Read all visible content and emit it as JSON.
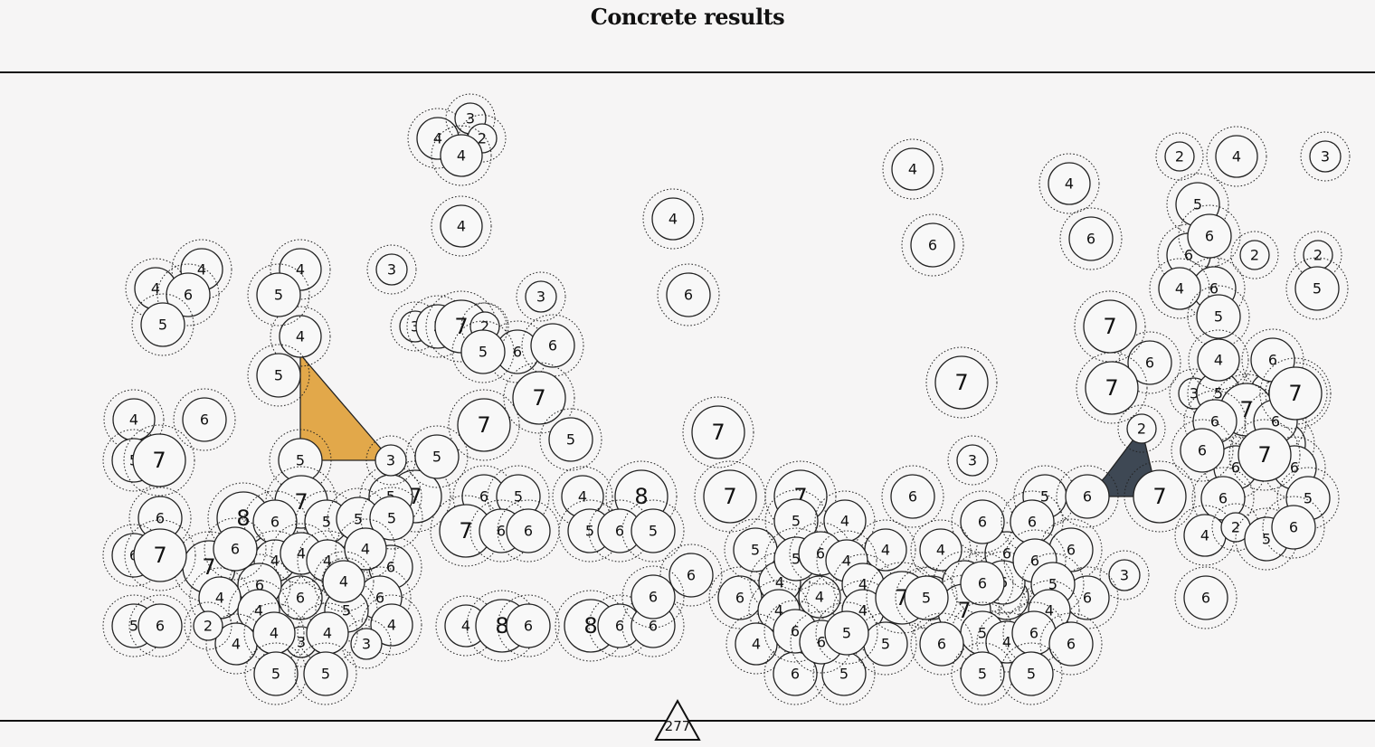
{
  "header": {
    "title": "Concrete results"
  },
  "footer": {
    "count": "277"
  },
  "colors": {
    "background": "#f6f5f5",
    "highlight_orange": "#e2a84a",
    "highlight_dark": "#3e4854",
    "stroke": "#222222"
  },
  "highlights": [
    {
      "name": "orange-triangle",
      "color": "#e2a84a",
      "corners": [
        4,
        5,
        3
      ]
    },
    {
      "name": "dark-polygon",
      "color": "#3e4854",
      "corners": [
        2,
        3,
        5
      ]
    }
  ],
  "nodes": [
    "4",
    "3",
    "2",
    "4",
    "4",
    "2",
    "4",
    "3",
    "4",
    "2",
    "4",
    "6",
    "4",
    "4",
    "4",
    "3",
    "6",
    "6",
    "6",
    "5",
    "6",
    "2",
    "2",
    "6",
    "6",
    "4",
    "5",
    "6",
    "5",
    "4",
    "5",
    "4",
    "5",
    "5",
    "3",
    "3",
    "3",
    "5",
    "7",
    "2",
    "5",
    "2",
    "6",
    "6",
    "5",
    "7",
    "7",
    "7",
    "7",
    "7",
    "6",
    "3",
    "5",
    "4",
    "6",
    "7",
    "5",
    "5",
    "7",
    "7",
    "7",
    "7",
    "5",
    "6",
    "7",
    "5",
    "4",
    "3",
    "5",
    "5",
    "6",
    "6",
    "6",
    "7",
    "7",
    "6",
    "8",
    "5",
    "6",
    "6",
    "6",
    "6",
    "7",
    "6",
    "7",
    "6",
    "5",
    "6",
    "6",
    "4",
    "5",
    "6",
    "5",
    "6",
    "3",
    "7",
    "6",
    "6",
    "6",
    "6",
    "6",
    "5",
    "5",
    "6",
    "4",
    "5",
    "6",
    "6",
    "5",
    "4",
    "7",
    "7",
    "8",
    "6",
    "6",
    "6",
    "5",
    "5",
    "5",
    "4",
    "4",
    "4",
    "4",
    "2",
    "6",
    "6",
    "6",
    "4",
    "4",
    "5",
    "3",
    "4",
    "4",
    "3",
    "4",
    "4",
    "4",
    "5",
    "5",
    "5",
    "6",
    "2",
    "6",
    "7",
    "4",
    "8",
    "6",
    "8",
    "6",
    "6",
    "6",
    "6",
    "5",
    "5",
    "4",
    "4",
    "4",
    "4",
    "5",
    "6",
    "4",
    "4",
    "4",
    "4",
    "4",
    "6",
    "5",
    "5",
    "6",
    "6",
    "5",
    "7",
    "5",
    "6",
    "5",
    "4",
    "6",
    "6",
    "6",
    "5",
    "5",
    "6",
    "4",
    "2",
    "5",
    "6",
    "6",
    "4",
    "3",
    "2",
    "3",
    "3",
    "3",
    "3",
    "4",
    "4",
    "5",
    "6",
    "4",
    "5",
    "5",
    "4",
    "4",
    "4",
    "4",
    "4",
    "4",
    "6",
    "6",
    "4",
    "5",
    "6",
    "6",
    "4",
    "3",
    "5",
    "3",
    "3",
    "3",
    "3",
    "3",
    "3",
    "2",
    "6",
    "3",
    "4",
    "5",
    "6",
    "4"
  ]
}
